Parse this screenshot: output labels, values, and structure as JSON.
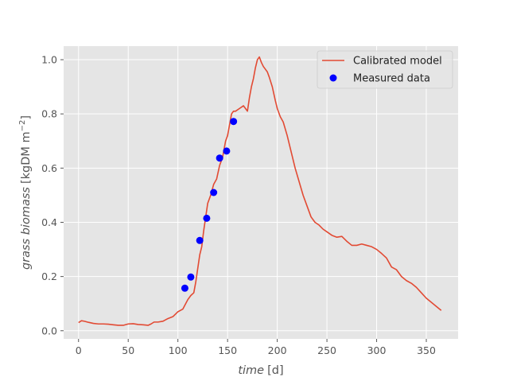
{
  "chart_data": {
    "type": "line",
    "title": "",
    "xlabel": "time",
    "xlabel_unit": "[d]",
    "ylabel": "grass biomass",
    "ylabel_unit_prefix": "[kgDM m",
    "ylabel_unit_exp": "−2",
    "ylabel_unit_suffix": "]",
    "xlim": [
      -15,
      382
    ],
    "ylim": [
      -0.03,
      1.05
    ],
    "x_ticks": [
      0,
      50,
      100,
      150,
      200,
      250,
      300,
      350
    ],
    "x_tick_labels": [
      "0",
      "50",
      "100",
      "150",
      "200",
      "250",
      "300",
      "350"
    ],
    "y_ticks": [
      0.0,
      0.2,
      0.4,
      0.6,
      0.8,
      1.0
    ],
    "y_tick_labels": [
      "0.0",
      "0.2",
      "0.4",
      "0.6",
      "0.8",
      "1.0"
    ],
    "grid": true,
    "legend_position": "top-right",
    "series": [
      {
        "name": "Calibrated model",
        "kind": "line",
        "color": "#e24a33",
        "x": [
          0,
          3,
          6,
          10,
          15,
          20,
          25,
          30,
          35,
          40,
          45,
          50,
          55,
          60,
          65,
          70,
          73,
          76,
          80,
          85,
          90,
          95,
          100,
          105,
          110,
          113,
          116,
          118,
          120,
          122,
          124,
          126,
          128,
          130,
          133,
          136,
          139,
          142,
          145,
          148,
          150,
          152,
          154,
          156,
          158,
          162,
          166,
          168,
          170,
          172,
          174,
          176,
          178,
          180,
          182,
          184,
          186,
          188,
          190,
          192,
          195,
          198,
          200,
          203,
          206,
          210,
          214,
          218,
          222,
          226,
          230,
          234,
          238,
          242,
          246,
          250,
          255,
          260,
          265,
          270,
          275,
          280,
          285,
          290,
          295,
          300,
          305,
          310,
          315,
          320,
          325,
          330,
          335,
          340,
          345,
          350,
          355,
          360,
          365
        ],
        "y": [
          0.03,
          0.037,
          0.035,
          0.031,
          0.027,
          0.025,
          0.025,
          0.024,
          0.022,
          0.02,
          0.02,
          0.025,
          0.026,
          0.023,
          0.022,
          0.02,
          0.025,
          0.032,
          0.032,
          0.035,
          0.045,
          0.052,
          0.07,
          0.08,
          0.115,
          0.13,
          0.14,
          0.18,
          0.23,
          0.28,
          0.31,
          0.37,
          0.42,
          0.47,
          0.5,
          0.54,
          0.56,
          0.61,
          0.64,
          0.7,
          0.72,
          0.76,
          0.8,
          0.81,
          0.81,
          0.82,
          0.83,
          0.82,
          0.81,
          0.86,
          0.9,
          0.93,
          0.97,
          1.0,
          1.01,
          0.99,
          0.975,
          0.965,
          0.955,
          0.935,
          0.9,
          0.85,
          0.82,
          0.79,
          0.77,
          0.72,
          0.66,
          0.6,
          0.55,
          0.5,
          0.46,
          0.42,
          0.4,
          0.39,
          0.375,
          0.365,
          0.352,
          0.345,
          0.348,
          0.33,
          0.315,
          0.315,
          0.32,
          0.315,
          0.31,
          0.3,
          0.285,
          0.268,
          0.235,
          0.225,
          0.2,
          0.185,
          0.175,
          0.16,
          0.14,
          0.12,
          0.105,
          0.09,
          0.075
        ]
      },
      {
        "name": "Measured data",
        "kind": "scatter",
        "color": "#0000ff",
        "x": [
          107,
          113,
          122,
          129,
          136,
          142,
          149,
          156
        ],
        "y": [
          0.157,
          0.198,
          0.333,
          0.415,
          0.51,
          0.637,
          0.663,
          0.772
        ]
      }
    ]
  }
}
